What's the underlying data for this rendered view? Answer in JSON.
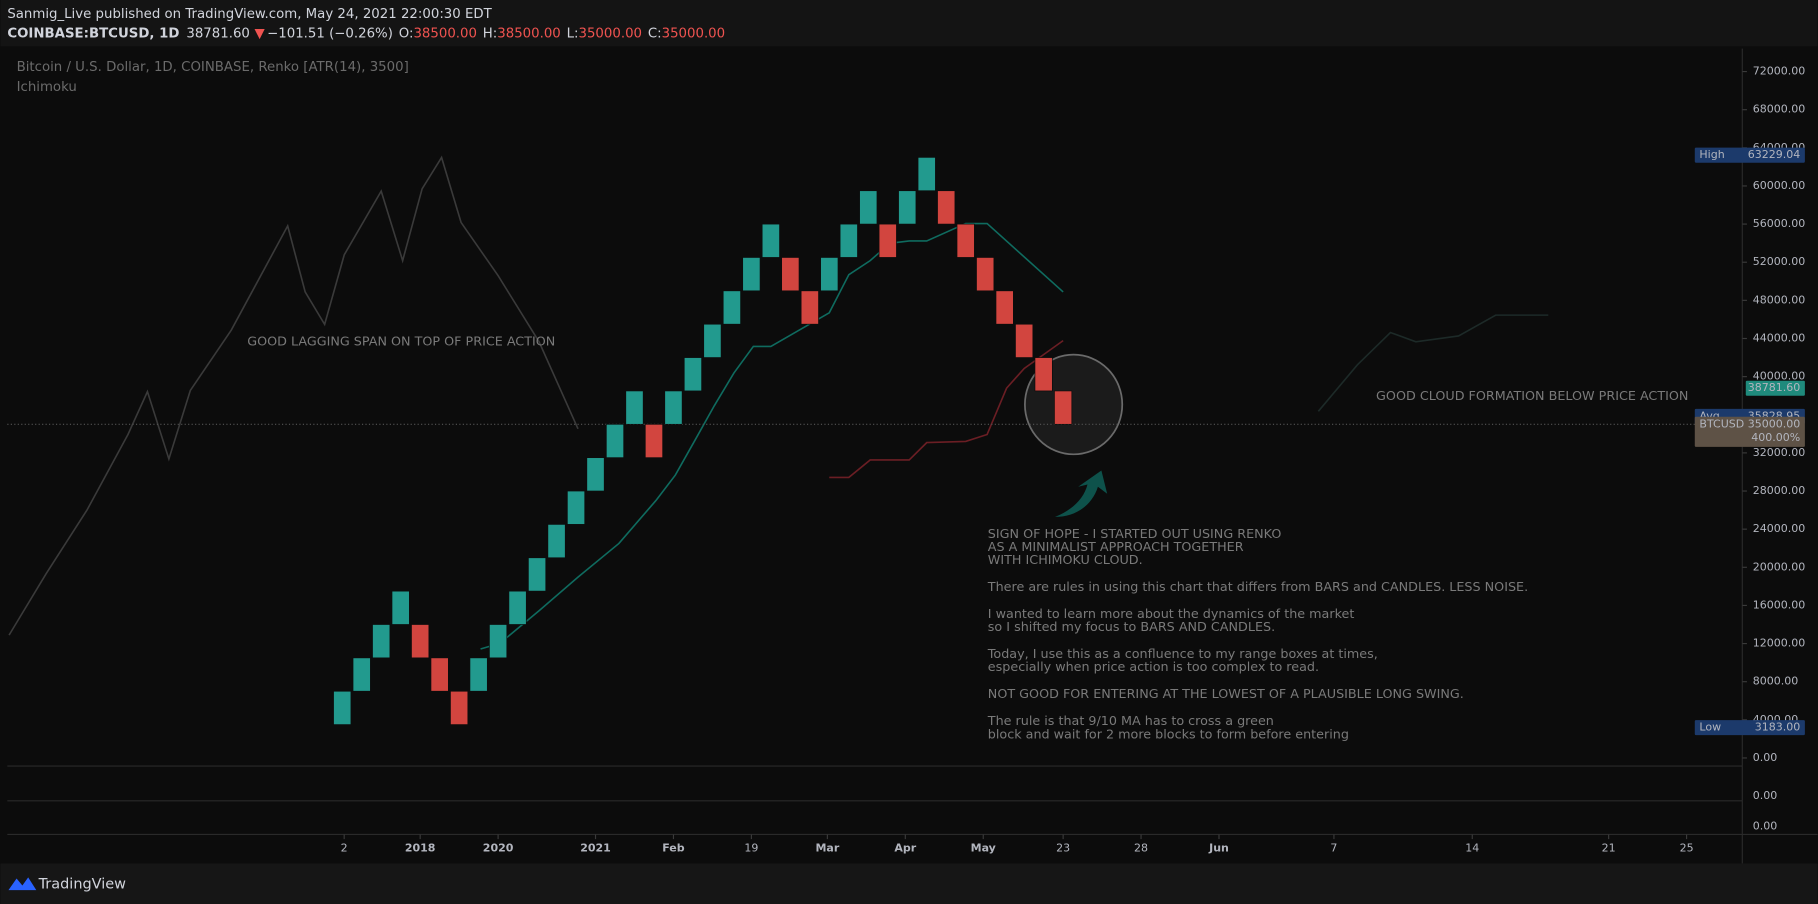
{
  "header": {
    "publisher": "Sanmig_Live published on TradingView.com, May 24, 2021 22:00:30 EDT",
    "symbol": "COINBASE:BTCUSD, 1D",
    "last": "38781.60",
    "change_icon": "▼",
    "change": "−101.51 (−0.26%)",
    "ohlc": [
      {
        "key": "O:",
        "value": "38500.00"
      },
      {
        "key": "H:",
        "value": "38500.00"
      },
      {
        "key": "L:",
        "value": "35000.00"
      },
      {
        "key": "C:",
        "value": "35000.00"
      }
    ]
  },
  "chart_data": {
    "type": "renko",
    "title": "Bitcoin / U.S. Dollar, 1D, COINBASE, Renko [ATR(14), 3500]",
    "indicator": "Ichimoku",
    "up_color": "#229a8e",
    "down_color": "#d2453f",
    "bricks": {
      "open": [
        3500,
        7000,
        10500,
        14000,
        14000,
        10500,
        7000,
        7000,
        10500,
        14000,
        17500,
        21000,
        24500,
        28000,
        31500,
        35000,
        35000,
        35000,
        38500,
        42000,
        45500,
        49000,
        52500,
        52500,
        49000,
        49000,
        52500,
        56000,
        56000,
        56000,
        59500,
        59500,
        56000,
        52500,
        49000,
        45500,
        42000,
        38500
      ],
      "close": [
        7000,
        10500,
        14000,
        17500,
        10500,
        7000,
        3500,
        10500,
        14000,
        17500,
        21000,
        24500,
        28000,
        31500,
        35000,
        38500,
        31500,
        38500,
        42000,
        45500,
        49000,
        52500,
        56000,
        49000,
        45500,
        52500,
        56000,
        59500,
        52500,
        59500,
        63000,
        56000,
        52500,
        49000,
        45500,
        42000,
        38500,
        35000
      ]
    },
    "lines": [
      {
        "color": "#3a3a3a",
        "x": [
          -17.1,
          -15.2,
          -13.1,
          -11.0,
          -10.0,
          -8.9,
          -7.8,
          -5.7,
          -2.8,
          -1.9,
          -0.9,
          0.1,
          2.0,
          3.1,
          4.1,
          5.1,
          6.1,
          8.0,
          10.1,
          12.1
        ],
        "values": [
          12890,
          19330,
          26020,
          33930,
          38430,
          31370,
          38550,
          44870,
          55810,
          48880,
          45480,
          52770,
          59460,
          52160,
          59700,
          62990,
          56180,
          50590,
          43650,
          34530
        ]
      },
      {
        "color": "#0f6b5f",
        "x": [
          7.1,
          8.1,
          10.1,
          12.1,
          14.2,
          16.1,
          17.1,
          18.1,
          19.1,
          20.1,
          21.1,
          22.0,
          25.0,
          26.0,
          27.1,
          28.1,
          29.1,
          30.0,
          32.0,
          33.1,
          37.0
        ],
        "values": [
          11430,
          12040,
          15440,
          18970,
          22500,
          27000,
          29670,
          33320,
          36970,
          40370,
          43170,
          43170,
          46700,
          50700,
          52170,
          53990,
          54230,
          54230,
          56060,
          56060,
          48880
        ]
      },
      {
        "color": "#6b1e24",
        "x": [
          25.0,
          26.0,
          27.1,
          29.1,
          30.0,
          32.0,
          33.1,
          34.1,
          35.0,
          37.0
        ],
        "values": [
          29430,
          29430,
          31250,
          31250,
          33080,
          33200,
          33930,
          38790,
          40860,
          43780
        ]
      },
      {
        "color": "#1d2a28",
        "x": [
          50.1,
          52.1,
          53.8,
          55.1,
          57.3,
          59.2,
          61.9
        ],
        "values": [
          36360,
          41220,
          44630,
          43650,
          44260,
          46450,
          46450
        ]
      }
    ],
    "xlim": [
      -17.19,
      71.86
    ],
    "ylim": [
      -730,
      74400
    ],
    "xticks": [
      {
        "value": 0.1,
        "label": "2"
      },
      {
        "value": 4.0,
        "label": "2018"
      },
      {
        "value": 8.0,
        "label": "2020"
      },
      {
        "value": 13.0,
        "label": "2021"
      },
      {
        "value": 17.0,
        "label": "Feb"
      },
      {
        "value": 21.0,
        "label": "19"
      },
      {
        "value": 24.9,
        "label": "Mar"
      },
      {
        "value": 28.9,
        "label": "Apr"
      },
      {
        "value": 32.9,
        "label": "May"
      },
      {
        "value": 37.0,
        "label": "23"
      },
      {
        "value": 41.0,
        "label": "28"
      },
      {
        "value": 45.0,
        "label": "Jun"
      },
      {
        "value": 50.9,
        "label": "7"
      },
      {
        "value": 58.0,
        "label": "14"
      },
      {
        "value": 65.0,
        "label": "21"
      },
      {
        "value": 69.0,
        "label": "25"
      }
    ],
    "yticks": [
      {
        "value": 0,
        "label": "0.00"
      },
      {
        "value": 4000,
        "label": "4000.00"
      },
      {
        "value": 8000,
        "label": "8000.00"
      },
      {
        "value": 12000,
        "label": "12000.00"
      },
      {
        "value": 16000,
        "label": "16000.00"
      },
      {
        "value": 20000,
        "label": "20000.00"
      },
      {
        "value": 24000,
        "label": "24000.00"
      },
      {
        "value": 28000,
        "label": "28000.00"
      },
      {
        "value": 32000,
        "label": "32000.00"
      },
      {
        "value": 40000,
        "label": "40000.00"
      },
      {
        "value": 44000,
        "label": "44000.00"
      },
      {
        "value": 48000,
        "label": "48000.00"
      },
      {
        "value": 52000,
        "label": "52000.00"
      },
      {
        "value": 56000,
        "label": "56000.00"
      },
      {
        "value": 60000,
        "label": "60000.00"
      },
      {
        "value": 64000,
        "label": "64000.00"
      },
      {
        "value": 68000,
        "label": "68000.00"
      },
      {
        "value": 72000,
        "label": "72000.00"
      }
    ],
    "price_labels": [
      {
        "name": "High",
        "value": 63229.04,
        "label": "63229.04",
        "color": "#1c3a6b"
      },
      {
        "value": 38781.6,
        "label": "38781.60",
        "color": "#1f8a7c"
      },
      {
        "name": "Avg",
        "value": 35828.95,
        "label": "35828.95",
        "color": "#1c3a6b"
      },
      {
        "name": "BTCUSD",
        "value": 35000,
        "label": "35000.00",
        "extra": "400.00%",
        "color": "#5e5246"
      },
      {
        "name": "Low",
        "value": 3183,
        "label": "3183.00",
        "color": "#1c3a6b"
      }
    ],
    "annotations": [
      {
        "text": "GOOD LAGGING SPAN ON TOP OF PRICE ACTION"
      },
      {
        "text": "GOOD CLOUD FORMATION BELOW PRICE ACTION"
      },
      {
        "paragraphs": [
          [
            "SIGN OF HOPE - I STARTED OUT USING RENKO",
            "AS A MINIMALIST APPROACH TOGETHER",
            "WITH ICHIMOKU CLOUD."
          ],
          [
            "There are rules in using this chart that differs from BARS and CANDLES. LESS NOISE."
          ],
          [
            "I wanted to learn more about the dynamics of the market",
            "so I shifted my focus to BARS AND CANDLES."
          ],
          [
            "Today, I use this as a confluence to my range boxes at times,",
            "especially when price action is too complex to read."
          ],
          [
            "NOT GOOD FOR ENTERING AT THE LOWEST OF A PLAUSIBLE LONG SWING."
          ],
          [
            "The rule is that 9/10 MA has to cross a green",
            "block and wait for 2 more blocks to form before entering"
          ]
        ]
      }
    ]
  },
  "panels": [
    "0.00",
    "0.00"
  ],
  "footer": {
    "brand": "TradingView"
  }
}
